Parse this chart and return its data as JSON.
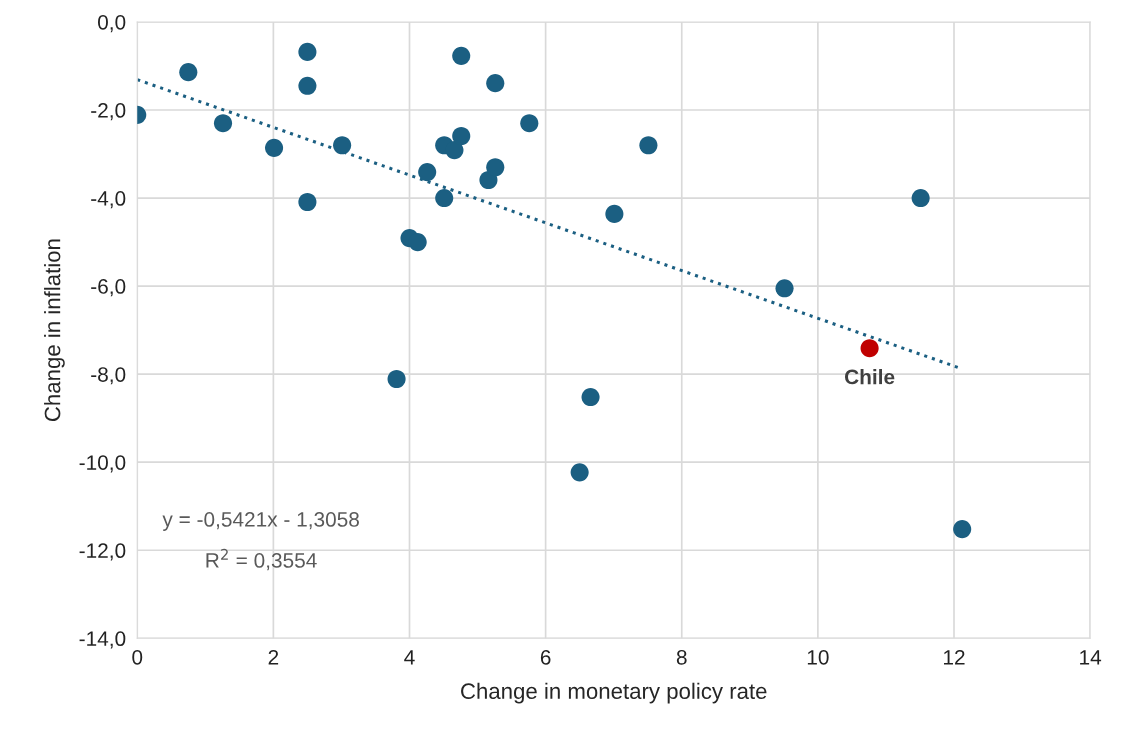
{
  "chart_data": {
    "type": "scatter",
    "xlabel": "Change in monetary policy rate",
    "ylabel": "Change in inflation",
    "series": [
      {
        "color": "#1b5f82",
        "x": [
          0,
          0.75,
          1.26,
          2.01,
          2.5,
          2.5,
          2.5,
          3.01,
          3.81,
          4.0,
          4.12,
          4.26,
          4.51,
          4.51,
          4.66,
          4.76,
          4.76,
          5.16,
          5.26,
          5.26,
          5.76,
          6.5,
          6.66,
          7.01,
          7.51,
          9.51,
          11.51,
          12.12
        ],
        "values": [
          -2.11,
          -1.14,
          -2.3,
          -2.86,
          -0.68,
          -1.45,
          -4.09,
          -2.8,
          -8.11,
          -4.91,
          -5.0,
          -3.41,
          -2.8,
          -4.0,
          -2.91,
          -0.77,
          -2.59,
          -3.59,
          -1.39,
          -3.3,
          -2.3,
          -10.23,
          -8.52,
          -4.36,
          -2.8,
          -6.05,
          -4.0,
          -11.52
        ]
      },
      {
        "color": "#c00000",
        "x": [
          10.76
        ],
        "values": [
          -7.41
        ]
      },
      {
        "type": "line",
        "color": "#1b5f82",
        "line_style": "dotted",
        "marker": "none",
        "x": [
          0,
          12.1
        ],
        "values": [
          -1.31,
          -7.87
        ]
      }
    ],
    "xlim": [
      0,
      14
    ],
    "xticks": [
      0,
      2,
      4,
      6,
      8,
      10,
      12,
      14
    ],
    "ylim": [
      -14,
      0
    ],
    "yticks": [
      {
        "value": -14,
        "label": "-14,0"
      },
      {
        "value": -12,
        "label": "-12,0"
      },
      {
        "value": -10,
        "label": "-10,0"
      },
      {
        "value": -8,
        "label": "-8,0"
      },
      {
        "value": -6,
        "label": "-6,0"
      },
      {
        "value": -4,
        "label": "-4,0"
      },
      {
        "value": -2,
        "label": "-2,0"
      },
      {
        "value": 0,
        "label": "0,0"
      }
    ],
    "grid": true,
    "legend": false,
    "marker": "circle",
    "annotations": [
      {
        "text": "Chile",
        "x": 10.76,
        "y": -7.41
      },
      "y = -0,5421x - 1,3058",
      "R$^{2}$ = 0,3554"
    ]
  }
}
